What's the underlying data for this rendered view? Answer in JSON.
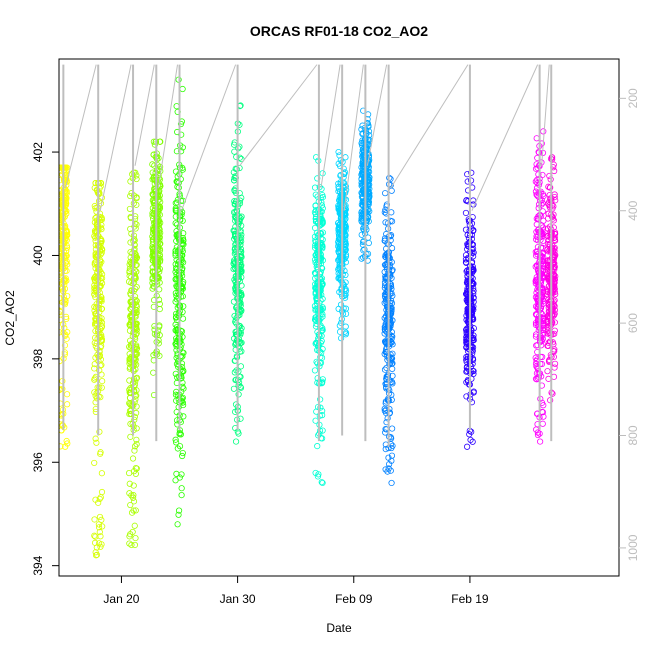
{
  "chart_data": {
    "type": "scatter",
    "title": "ORCAS RF01-18 CO2_AO2",
    "xlabel": "Date",
    "ylabel": "CO2_AO2",
    "x_ticks": [
      "Jan 20",
      "Jan 30",
      "Feb 09",
      "Feb 19"
    ],
    "x_range": [
      "2016-01-14T15:00",
      "2016-03-02T20:00"
    ],
    "y_ticks": [
      394,
      396,
      398,
      400,
      402
    ],
    "ylim": [
      393.8,
      403.8
    ],
    "y2_ticks": [
      200,
      400,
      600,
      800,
      1000
    ],
    "y2lim_inverted": [
      1050,
      130
    ],
    "grid": false,
    "marker": "open-circle",
    "series": [
      {
        "date": "2016-01-15",
        "color": "#FFFF00",
        "co2_min": 396.3,
        "co2_max": 401.7,
        "co2_typical": 400.5,
        "pressure_min": 140,
        "pressure_max": 790
      },
      {
        "date": "2016-01-18",
        "color": "#D5FF00",
        "co2_min": 394.2,
        "co2_max": 401.4,
        "co2_typical": 399.5,
        "pressure_min": 140,
        "pressure_max": 800
      },
      {
        "date": "2016-01-21",
        "color": "#AAFF00",
        "co2_min": 394.4,
        "co2_max": 401.6,
        "co2_typical": 399.0,
        "pressure_min": 140,
        "pressure_max": 800
      },
      {
        "date": "2016-01-23",
        "color": "#80FF00",
        "co2_min": 397.3,
        "co2_max": 402.2,
        "co2_typical": 400.5,
        "pressure_min": 140,
        "pressure_max": 810
      },
      {
        "date": "2016-01-25",
        "color": "#2BFF00",
        "co2_min": 394.8,
        "co2_max": 403.4,
        "co2_typical": 399.0,
        "pressure_min": 140,
        "pressure_max": 790
      },
      {
        "date": "2016-01-30",
        "color": "#00FF80",
        "co2_min": 396.4,
        "co2_max": 402.9,
        "co2_typical": 399.8,
        "pressure_min": 140,
        "pressure_max": 790
      },
      {
        "date": "2016-02-06",
        "color": "#00FFD5",
        "co2_min": 395.6,
        "co2_max": 401.9,
        "co2_typical": 399.5,
        "pressure_min": 140,
        "pressure_max": 810
      },
      {
        "date": "2016-02-08",
        "color": "#00D5FF",
        "co2_min": 398.4,
        "co2_max": 402.0,
        "co2_typical": 400.5,
        "pressure_min": 140,
        "pressure_max": 800
      },
      {
        "date": "2016-02-10",
        "color": "#00AAFF",
        "co2_min": 399.9,
        "co2_max": 402.8,
        "co2_typical": 401.5,
        "pressure_min": 140,
        "pressure_max": 810
      },
      {
        "date": "2016-02-12",
        "color": "#0080FF",
        "co2_min": 395.6,
        "co2_max": 401.5,
        "co2_typical": 399.0,
        "pressure_min": 140,
        "pressure_max": 820
      },
      {
        "date": "2016-02-19",
        "color": "#2B00FF",
        "co2_min": 396.3,
        "co2_max": 401.6,
        "co2_typical": 399.0,
        "pressure_min": 140,
        "pressure_max": 790
      },
      {
        "date": "2016-02-25",
        "color": "#FF00FF",
        "co2_min": 396.4,
        "co2_max": 402.4,
        "co2_typical": 399.5,
        "pressure_min": 140,
        "pressure_max": 790
      },
      {
        "date": "2016-02-26",
        "color": "#FF00E0",
        "co2_min": 397.2,
        "co2_max": 401.9,
        "co2_typical": 399.5,
        "pressure_min": 140,
        "pressure_max": 810
      }
    ],
    "pressure_trace_color": "#bebebe"
  }
}
